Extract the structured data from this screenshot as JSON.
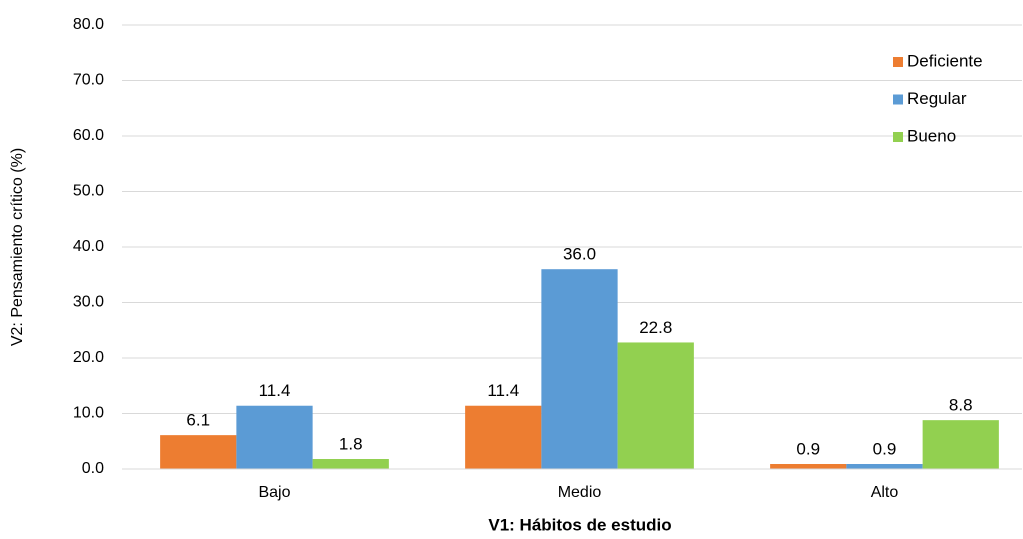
{
  "chart_data": {
    "type": "bar",
    "x_label": "V1: Hábitos de estudio",
    "y_label": "V2: Pensamiento crítico (%)",
    "categories": [
      "Bajo",
      "Medio",
      "Alto"
    ],
    "series": [
      {
        "name": "Deficiente",
        "color": "#ed7d31",
        "values": [
          6.1,
          11.4,
          0.9
        ],
        "value_labels": [
          "6.1",
          "11.4",
          "0.9"
        ]
      },
      {
        "name": "Regular",
        "color": "#5b9bd5",
        "values": [
          11.4,
          36.0,
          0.9
        ],
        "value_labels": [
          "11.4",
          "36.0",
          "0.9"
        ]
      },
      {
        "name": "Bueno",
        "color": "#92d050",
        "values": [
          1.8,
          22.8,
          8.8
        ],
        "value_labels": [
          "1.8",
          "22.8",
          "8.8"
        ]
      }
    ],
    "ylim": [
      0,
      80
    ],
    "yticks": [
      {
        "value": 0,
        "label": "0.0"
      },
      {
        "value": 10,
        "label": "10.0"
      },
      {
        "value": 20,
        "label": "20.0"
      },
      {
        "value": 30,
        "label": "30.0"
      },
      {
        "value": 40,
        "label": "40.0"
      },
      {
        "value": 50,
        "label": "50.0"
      },
      {
        "value": 60,
        "label": "60.0"
      },
      {
        "value": 70,
        "label": "70.0"
      },
      {
        "value": 80,
        "label": "80.0"
      }
    ],
    "grid": true,
    "legend": "top-right"
  }
}
